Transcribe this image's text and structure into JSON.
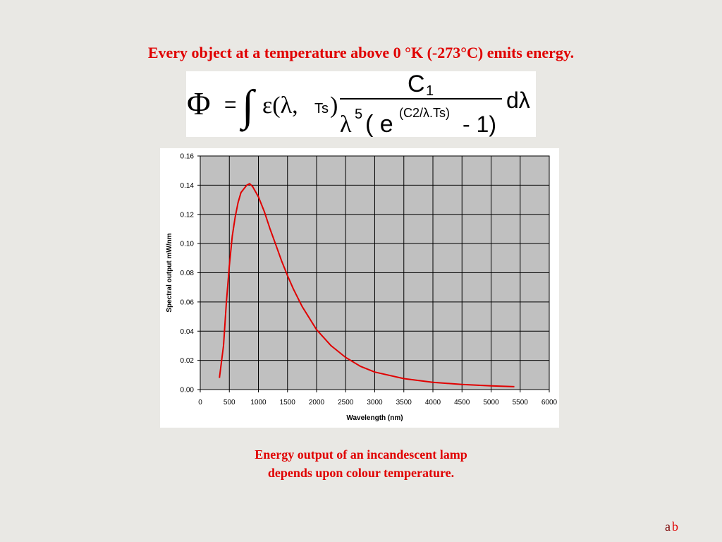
{
  "title": "Every object at a temperature above 0 °K (-273°C) emits energy.",
  "formula": [
    "Φ",
    "=",
    "∫",
    "ε(λ,",
    "Ts",
    ")",
    "C",
    "1",
    "λ",
    "5",
    "( e",
    "(C2/λ.Ts)",
    "- 1)",
    "dλ"
  ],
  "chart_data": {
    "type": "line",
    "xlabel": "Wavelength (nm)",
    "ylabel": "Spectral output mW/nm",
    "x": [
      330,
      400,
      450,
      500,
      550,
      600,
      650,
      700,
      800,
      850,
      900,
      1000,
      1100,
      1200,
      1300,
      1400,
      1500,
      1600,
      1750,
      2000,
      2250,
      2500,
      2750,
      3000,
      3500,
      4000,
      4500,
      5000,
      5400
    ],
    "values": [
      0.008,
      0.03,
      0.06,
      0.085,
      0.105,
      0.118,
      0.128,
      0.135,
      0.14,
      0.141,
      0.139,
      0.132,
      0.122,
      0.11,
      0.099,
      0.088,
      0.078,
      0.069,
      0.057,
      0.041,
      0.03,
      0.022,
      0.016,
      0.012,
      0.0075,
      0.005,
      0.0035,
      0.0025,
      0.002
    ],
    "color": "#e00000",
    "xlim": [
      0,
      6000
    ],
    "xticks": [
      0,
      500,
      1000,
      1500,
      2000,
      2500,
      3000,
      3500,
      4000,
      4500,
      5000,
      5500,
      6000
    ],
    "ylim": [
      0,
      0.16
    ],
    "yticks": [
      {
        "value": 0,
        "label": "0.00"
      },
      0.02,
      0.04,
      0.06,
      0.08,
      {
        "value": 0.1,
        "label": "0.10"
      },
      0.12,
      0.14,
      0.16
    ],
    "grid": true
  },
  "caption": [
    "Energy output of an incandescent lamp",
    "depends upon colour temperature."
  ],
  "footer": [
    "a",
    "b"
  ]
}
